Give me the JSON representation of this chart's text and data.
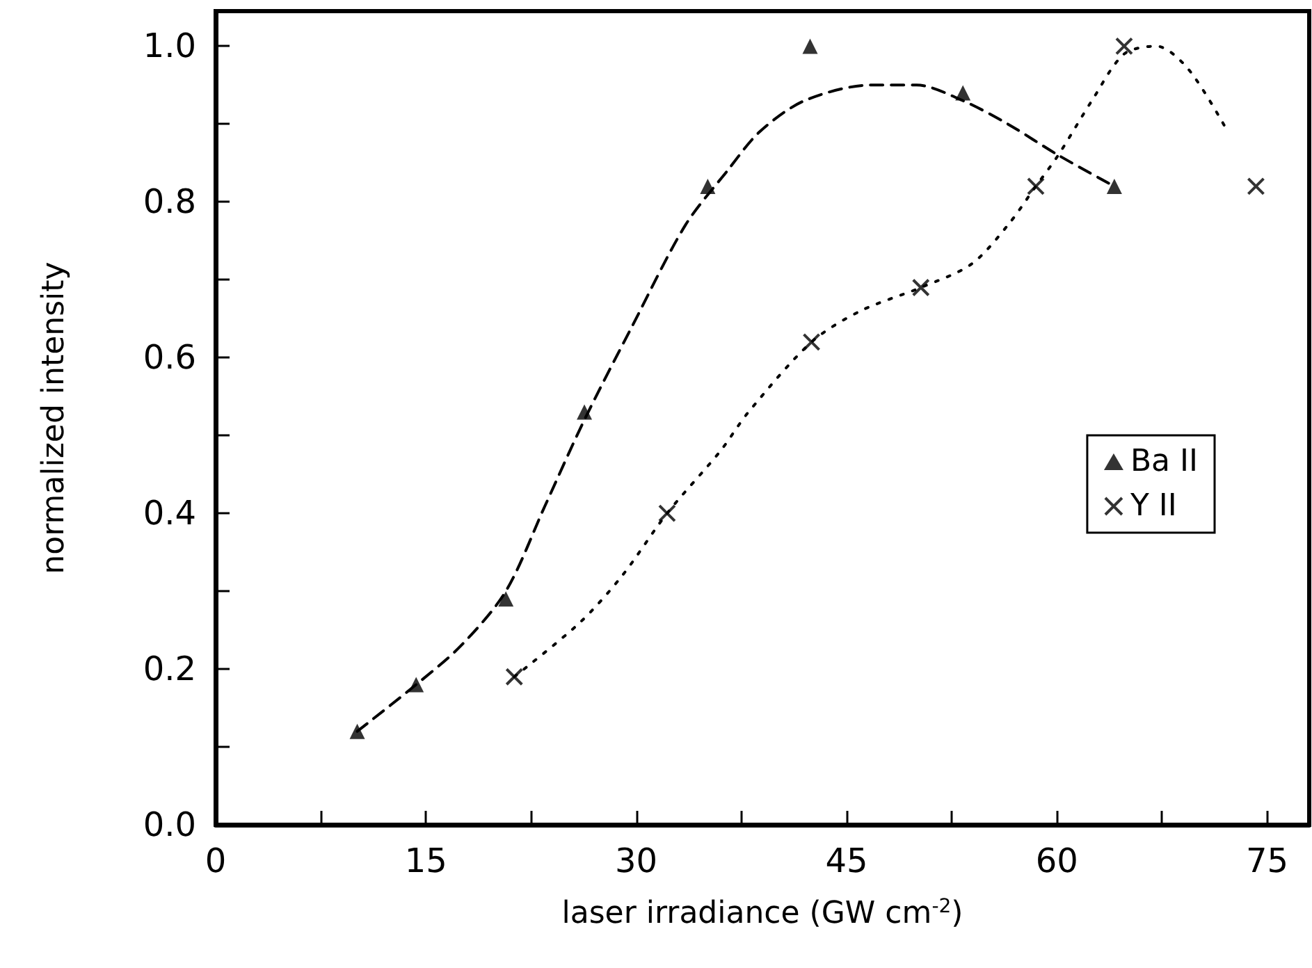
{
  "chart_data": {
    "type": "scatter",
    "xlabel": "laser irradiance (GW cm$^{-2}$)",
    "ylabel": "normalized intensity",
    "xlim": [
      0,
      78
    ],
    "xticks": [
      0,
      {
        "value": 7.5,
        "label": null
      },
      15,
      {
        "value": 22.5,
        "label": null
      },
      30,
      {
        "value": 37.5,
        "label": null
      },
      45,
      {
        "value": 52.5,
        "label": null
      },
      60,
      {
        "value": 67.5,
        "label": null
      },
      75
    ],
    "ylim": [
      0,
      1.045
    ],
    "yticks": [
      {
        "value": 0,
        "label": "0.0"
      },
      {
        "value": 0.1,
        "label": null
      },
      {
        "value": 0.2,
        "label": "0.2"
      },
      {
        "value": 0.3,
        "label": null
      },
      {
        "value": 0.4,
        "label": "0.4"
      },
      {
        "value": 0.5,
        "label": null
      },
      {
        "value": 0.6,
        "label": "0.6"
      },
      {
        "value": 0.7,
        "label": null
      },
      {
        "value": 0.8,
        "label": "0.8"
      },
      {
        "value": 0.9,
        "label": null
      },
      {
        "value": 1.0,
        "label": "1.0"
      }
    ],
    "grid": false,
    "legend": "right",
    "series": [
      {
        "name": "Ba II",
        "marker": "triangle",
        "color": "#000000",
        "x": [
          10.1,
          14.3,
          20.7,
          26.3,
          35.1,
          42.4,
          53.3,
          64.1
        ],
        "values": [
          0.12,
          0.18,
          0.29,
          0.53,
          0.82,
          1.0,
          0.94,
          0.82
        ]
      },
      {
        "name": "Y II",
        "marker": "cross",
        "color": "#000000",
        "x": [
          21.3,
          32.2,
          42.5,
          50.3,
          58.5,
          64.8,
          74.2
        ],
        "values": [
          0.19,
          0.4,
          0.62,
          0.69,
          0.82,
          1.0,
          0.82
        ]
      },
      {
        "type": "line",
        "line_style": "dashed",
        "marker": "none",
        "color": "#000000",
        "x": [
          10.1,
          14.3,
          17.5,
          20.7,
          23.5,
          26.3,
          29.7,
          33.5,
          36.5,
          38.8,
          42,
          46.7,
          50,
          53.3,
          56.5,
          60.1,
          64.1
        ],
        "values": [
          0.12,
          0.18,
          0.23,
          0.3,
          0.41,
          0.52,
          0.64,
          0.77,
          0.84,
          0.89,
          0.93,
          0.95,
          0.95,
          0.93,
          0.9,
          0.86,
          0.82
        ]
      },
      {
        "type": "line",
        "line_style": "dotted",
        "marker": "none",
        "color": "#000000",
        "x": [
          21.3,
          26,
          29,
          32.2,
          36,
          38,
          42.5,
          46,
          50.3,
          53.9,
          56.5,
          58.5,
          60.1,
          62.5,
          64.8,
          67.1,
          69.4,
          72.2
        ],
        "values": [
          0.19,
          0.26,
          0.32,
          0.4,
          0.48,
          0.53,
          0.62,
          0.66,
          0.69,
          0.72,
          0.77,
          0.82,
          0.86,
          0.93,
          0.99,
          1.0,
          0.97,
          0.89
        ]
      }
    ]
  }
}
